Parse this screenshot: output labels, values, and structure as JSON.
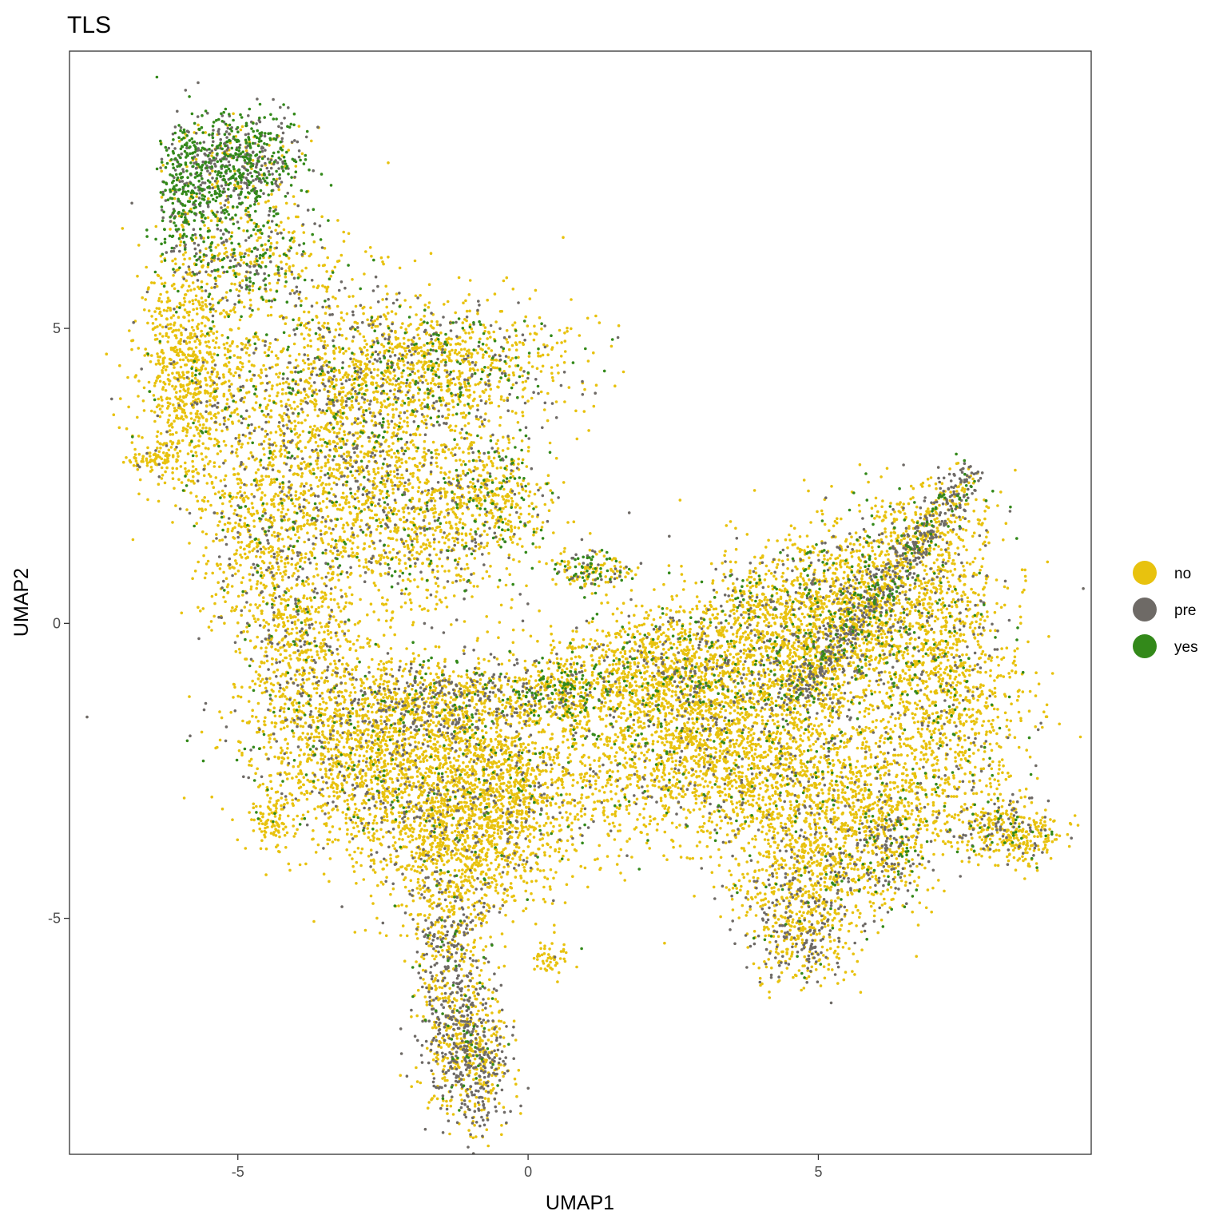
{
  "chart_data": {
    "type": "scatter",
    "title": "TLS",
    "xlabel": "UMAP1",
    "ylabel": "UMAP2",
    "xlim": [
      -7.9,
      9.7
    ],
    "ylim": [
      -9.0,
      9.7
    ],
    "xticks": [
      {
        "value": -5,
        "label": "-5"
      },
      {
        "value": 0,
        "label": "0"
      },
      {
        "value": 5,
        "label": "5"
      }
    ],
    "yticks": [
      {
        "value": 5,
        "label": "5"
      },
      {
        "value": 0,
        "label": "0"
      },
      {
        "value": -5,
        "label": "-5"
      }
    ],
    "grid": false,
    "legend_position": "right",
    "series": [
      {
        "name": "no",
        "color": "#E8C20E"
      },
      {
        "name": "pre",
        "color": "#6E6A66"
      },
      {
        "name": "yes",
        "color": "#33891A"
      }
    ]
  }
}
